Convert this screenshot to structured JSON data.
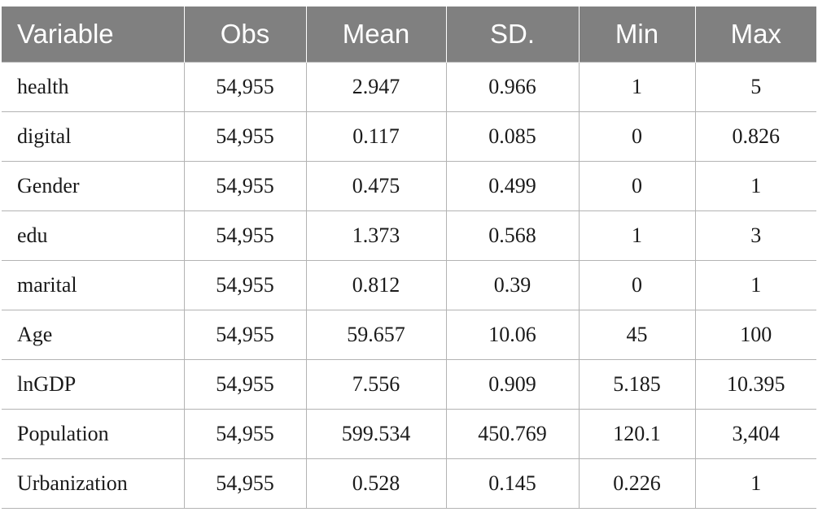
{
  "table": {
    "headers": [
      "Variable",
      "Obs",
      "Mean",
      "SD.",
      "Min",
      "Max"
    ],
    "rows": [
      [
        "health",
        "54,955",
        "2.947",
        "0.966",
        "1",
        "5"
      ],
      [
        "digital",
        "54,955",
        "0.117",
        "0.085",
        "0",
        "0.826"
      ],
      [
        "Gender",
        "54,955",
        "0.475",
        "0.499",
        "0",
        "1"
      ],
      [
        "edu",
        "54,955",
        "1.373",
        "0.568",
        "1",
        "3"
      ],
      [
        "marital",
        "54,955",
        "0.812",
        "0.39",
        "0",
        "1"
      ],
      [
        "Age",
        "54,955",
        "59.657",
        "10.06",
        "45",
        "100"
      ],
      [
        "lnGDP",
        "54,955",
        "7.556",
        "0.909",
        "5.185",
        "10.395"
      ],
      [
        "Population",
        "54,955",
        "599.534",
        "450.769",
        "120.1",
        "3,404"
      ],
      [
        "Urbanization",
        "54,955",
        "0.528",
        "0.145",
        "0.226",
        "1"
      ]
    ]
  },
  "colors": {
    "header_background": "#808080",
    "header_text": "#ffffff",
    "grid_line": "#b3b3b3"
  }
}
